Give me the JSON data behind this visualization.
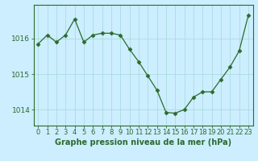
{
  "x": [
    0,
    1,
    2,
    3,
    4,
    5,
    6,
    7,
    8,
    9,
    10,
    11,
    12,
    13,
    14,
    15,
    16,
    17,
    18,
    19,
    20,
    21,
    22,
    23
  ],
  "y": [
    1015.85,
    1016.1,
    1015.9,
    1016.1,
    1016.55,
    1015.9,
    1016.1,
    1016.15,
    1016.15,
    1016.1,
    1015.7,
    1015.35,
    1014.95,
    1014.55,
    1013.92,
    1013.9,
    1014.0,
    1014.35,
    1014.5,
    1014.5,
    1014.85,
    1015.2,
    1015.65,
    1016.65
  ],
  "line_color": "#2d6a2d",
  "marker": "D",
  "marker_size": 2.5,
  "bg_color": "#cceeff",
  "grid_color": "#aadddd",
  "axis_label_color": "#2d6a2d",
  "tick_color": "#2d6a2d",
  "border_color": "#2d6a2d",
  "xlabel": "Graphe pression niveau de la mer (hPa)",
  "yticks": [
    1014,
    1015,
    1016
  ],
  "ylim": [
    1013.55,
    1016.95
  ],
  "xlim": [
    -0.5,
    23.5
  ],
  "xlabel_fontsize": 7.0,
  "tick_fontsize": 6.0,
  "ytick_fontsize": 6.5
}
